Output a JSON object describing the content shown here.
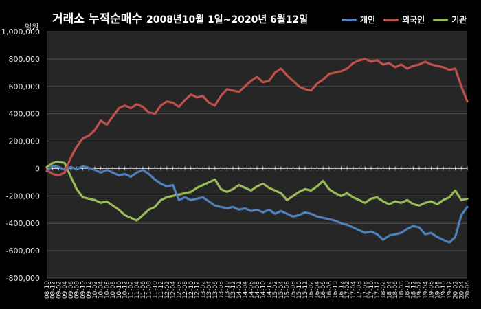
{
  "title": {
    "main": "거래소 누적순매수",
    "sub": "2008년10월 1일~2020년 6월12일"
  },
  "unit_label": "억원",
  "colors": {
    "background": "#000000",
    "plot_background": "#262626",
    "grid": "#505050",
    "axis_text": "#e6e6e6"
  },
  "legend": [
    {
      "name": "개인",
      "color": "#4f81bd"
    },
    {
      "name": "외국인",
      "color": "#c0504d"
    },
    {
      "name": "기관",
      "color": "#9bbb59"
    }
  ],
  "chart_data": {
    "type": "line",
    "title": "거래소 누적순매수 2008년10월 1일~2020년 6월12일",
    "ylabel": "억원",
    "ylim": [
      -800000,
      1000000
    ],
    "yticks": [
      "1,000,000",
      "800,000",
      "600,000",
      "400,000",
      "200,000",
      "0",
      "-200,000",
      "-400,000",
      "-600,000",
      "-800,000"
    ],
    "grid": true,
    "legend_position": "top-right",
    "x_range": [
      "08-10",
      "20-06"
    ],
    "x_ticks": [
      "08-10",
      "08-12",
      "09-02",
      "09-04",
      "09-06",
      "09-08",
      "09-10",
      "09-12",
      "10-02",
      "10-04",
      "10-06",
      "10-08",
      "10-10",
      "10-12",
      "11-02",
      "11-04",
      "11-06",
      "11-08",
      "11-10",
      "11-12",
      "12-02",
      "12-04",
      "12-06",
      "12-08",
      "12-10",
      "12-12",
      "13-02",
      "13-04",
      "13-06",
      "13-08",
      "13-10",
      "13-12",
      "14-02",
      "14-04",
      "14-06",
      "14-08",
      "14-10",
      "14-12",
      "15-02",
      "15-04",
      "15-06",
      "15-08",
      "15-10",
      "15-12",
      "16-02",
      "16-04",
      "16-06",
      "16-08",
      "16-10",
      "16-12",
      "17-02",
      "17-04",
      "17-06",
      "17-08",
      "17-10",
      "17-12",
      "18-02",
      "18-04",
      "18-06",
      "18-08",
      "18-10",
      "18-12",
      "19-02",
      "19-04",
      "19-06",
      "19-08",
      "19-10",
      "19-12",
      "20-02",
      "20-04",
      "20-06"
    ],
    "series": [
      {
        "name": "개인",
        "color": "#4f81bd",
        "points": [
          [
            "08-10",
            -20000
          ],
          [
            "08-12",
            20000
          ],
          [
            "09-02",
            10000
          ],
          [
            "09-04",
            -10000
          ],
          [
            "09-06",
            10000
          ],
          [
            "09-08",
            -5000
          ],
          [
            "09-10",
            15000
          ],
          [
            "09-12",
            5000
          ],
          [
            "10-02",
            -10000
          ],
          [
            "10-04",
            -30000
          ],
          [
            "10-06",
            -10000
          ],
          [
            "10-08",
            -30000
          ],
          [
            "10-10",
            -50000
          ],
          [
            "10-12",
            -40000
          ],
          [
            "11-02",
            -60000
          ],
          [
            "11-04",
            -30000
          ],
          [
            "11-06",
            -10000
          ],
          [
            "11-08",
            -40000
          ],
          [
            "11-10",
            -80000
          ],
          [
            "11-12",
            -110000
          ],
          [
            "12-02",
            -130000
          ],
          [
            "12-04",
            -120000
          ],
          [
            "12-06",
            -230000
          ],
          [
            "12-08",
            -210000
          ],
          [
            "12-10",
            -230000
          ],
          [
            "12-12",
            -220000
          ],
          [
            "13-02",
            -210000
          ],
          [
            "13-04",
            -240000
          ],
          [
            "13-06",
            -270000
          ],
          [
            "13-08",
            -280000
          ],
          [
            "13-10",
            -290000
          ],
          [
            "13-12",
            -280000
          ],
          [
            "14-02",
            -300000
          ],
          [
            "14-04",
            -290000
          ],
          [
            "14-06",
            -310000
          ],
          [
            "14-08",
            -300000
          ],
          [
            "14-10",
            -320000
          ],
          [
            "14-12",
            -300000
          ],
          [
            "15-02",
            -330000
          ],
          [
            "15-04",
            -310000
          ],
          [
            "15-06",
            -330000
          ],
          [
            "15-08",
            -350000
          ],
          [
            "15-10",
            -340000
          ],
          [
            "15-12",
            -320000
          ],
          [
            "16-02",
            -330000
          ],
          [
            "16-04",
            -350000
          ],
          [
            "16-06",
            -360000
          ],
          [
            "16-08",
            -370000
          ],
          [
            "16-10",
            -380000
          ],
          [
            "16-12",
            -400000
          ],
          [
            "17-02",
            -410000
          ],
          [
            "17-04",
            -430000
          ],
          [
            "17-06",
            -450000
          ],
          [
            "17-08",
            -470000
          ],
          [
            "17-10",
            -460000
          ],
          [
            "17-12",
            -480000
          ],
          [
            "18-02",
            -520000
          ],
          [
            "18-04",
            -490000
          ],
          [
            "18-06",
            -480000
          ],
          [
            "18-08",
            -470000
          ],
          [
            "18-10",
            -440000
          ],
          [
            "18-12",
            -420000
          ],
          [
            "19-02",
            -430000
          ],
          [
            "19-04",
            -480000
          ],
          [
            "19-06",
            -470000
          ],
          [
            "19-08",
            -500000
          ],
          [
            "19-10",
            -520000
          ],
          [
            "19-12",
            -540000
          ],
          [
            "20-02",
            -500000
          ],
          [
            "20-04",
            -340000
          ],
          [
            "20-06",
            -280000
          ]
        ]
      },
      {
        "name": "외국인",
        "color": "#c0504d",
        "points": [
          [
            "08-10",
            -10000
          ],
          [
            "08-12",
            -40000
          ],
          [
            "09-02",
            -50000
          ],
          [
            "09-04",
            -30000
          ],
          [
            "09-06",
            80000
          ],
          [
            "09-08",
            160000
          ],
          [
            "09-10",
            220000
          ],
          [
            "09-12",
            240000
          ],
          [
            "10-02",
            280000
          ],
          [
            "10-04",
            350000
          ],
          [
            "10-06",
            320000
          ],
          [
            "10-08",
            380000
          ],
          [
            "10-10",
            440000
          ],
          [
            "10-12",
            460000
          ],
          [
            "11-02",
            440000
          ],
          [
            "11-04",
            470000
          ],
          [
            "11-06",
            450000
          ],
          [
            "11-08",
            410000
          ],
          [
            "11-10",
            400000
          ],
          [
            "11-12",
            460000
          ],
          [
            "12-02",
            490000
          ],
          [
            "12-04",
            480000
          ],
          [
            "12-06",
            450000
          ],
          [
            "12-08",
            500000
          ],
          [
            "12-10",
            540000
          ],
          [
            "12-12",
            520000
          ],
          [
            "13-02",
            530000
          ],
          [
            "13-04",
            480000
          ],
          [
            "13-06",
            460000
          ],
          [
            "13-08",
            530000
          ],
          [
            "13-10",
            580000
          ],
          [
            "13-12",
            570000
          ],
          [
            "14-02",
            560000
          ],
          [
            "14-04",
            600000
          ],
          [
            "14-06",
            640000
          ],
          [
            "14-08",
            670000
          ],
          [
            "14-10",
            630000
          ],
          [
            "14-12",
            640000
          ],
          [
            "15-02",
            700000
          ],
          [
            "15-04",
            730000
          ],
          [
            "15-06",
            680000
          ],
          [
            "15-08",
            640000
          ],
          [
            "15-10",
            600000
          ],
          [
            "15-12",
            580000
          ],
          [
            "16-02",
            570000
          ],
          [
            "16-04",
            620000
          ],
          [
            "16-06",
            650000
          ],
          [
            "16-08",
            690000
          ],
          [
            "16-10",
            700000
          ],
          [
            "16-12",
            710000
          ],
          [
            "17-02",
            730000
          ],
          [
            "17-04",
            770000
          ],
          [
            "17-06",
            790000
          ],
          [
            "17-08",
            800000
          ],
          [
            "17-10",
            780000
          ],
          [
            "17-12",
            790000
          ],
          [
            "18-02",
            760000
          ],
          [
            "18-04",
            770000
          ],
          [
            "18-06",
            740000
          ],
          [
            "18-08",
            760000
          ],
          [
            "18-10",
            730000
          ],
          [
            "18-12",
            750000
          ],
          [
            "19-02",
            760000
          ],
          [
            "19-04",
            780000
          ],
          [
            "19-06",
            760000
          ],
          [
            "19-08",
            750000
          ],
          [
            "19-10",
            740000
          ],
          [
            "19-12",
            720000
          ],
          [
            "20-02",
            730000
          ],
          [
            "20-04",
            600000
          ],
          [
            "20-06",
            490000
          ]
        ]
      },
      {
        "name": "기관",
        "color": "#9bbb59",
        "points": [
          [
            "08-10",
            10000
          ],
          [
            "08-12",
            40000
          ],
          [
            "09-02",
            50000
          ],
          [
            "09-04",
            40000
          ],
          [
            "09-06",
            -60000
          ],
          [
            "09-08",
            -150000
          ],
          [
            "09-10",
            -210000
          ],
          [
            "09-12",
            -220000
          ],
          [
            "10-02",
            -230000
          ],
          [
            "10-04",
            -250000
          ],
          [
            "10-06",
            -240000
          ],
          [
            "10-08",
            -270000
          ],
          [
            "10-10",
            -300000
          ],
          [
            "10-12",
            -340000
          ],
          [
            "11-02",
            -360000
          ],
          [
            "11-04",
            -380000
          ],
          [
            "11-06",
            -340000
          ],
          [
            "11-08",
            -300000
          ],
          [
            "11-10",
            -280000
          ],
          [
            "11-12",
            -230000
          ],
          [
            "12-02",
            -210000
          ],
          [
            "12-04",
            -200000
          ],
          [
            "12-06",
            -190000
          ],
          [
            "12-08",
            -180000
          ],
          [
            "12-10",
            -170000
          ],
          [
            "12-12",
            -140000
          ],
          [
            "13-02",
            -120000
          ],
          [
            "13-04",
            -100000
          ],
          [
            "13-06",
            -80000
          ],
          [
            "13-08",
            -150000
          ],
          [
            "13-10",
            -170000
          ],
          [
            "13-12",
            -150000
          ],
          [
            "14-02",
            -120000
          ],
          [
            "14-04",
            -140000
          ],
          [
            "14-06",
            -160000
          ],
          [
            "14-08",
            -130000
          ],
          [
            "14-10",
            -110000
          ],
          [
            "14-12",
            -140000
          ],
          [
            "15-02",
            -160000
          ],
          [
            "15-04",
            -180000
          ],
          [
            "15-06",
            -230000
          ],
          [
            "15-08",
            -200000
          ],
          [
            "15-10",
            -170000
          ],
          [
            "15-12",
            -150000
          ],
          [
            "16-02",
            -160000
          ],
          [
            "16-04",
            -130000
          ],
          [
            "16-06",
            -90000
          ],
          [
            "16-08",
            -150000
          ],
          [
            "16-10",
            -180000
          ],
          [
            "16-12",
            -200000
          ],
          [
            "17-02",
            -180000
          ],
          [
            "17-04",
            -210000
          ],
          [
            "17-06",
            -230000
          ],
          [
            "17-08",
            -250000
          ],
          [
            "17-10",
            -220000
          ],
          [
            "17-12",
            -210000
          ],
          [
            "18-02",
            -240000
          ],
          [
            "18-04",
            -260000
          ],
          [
            "18-06",
            -240000
          ],
          [
            "18-08",
            -250000
          ],
          [
            "18-10",
            -230000
          ],
          [
            "18-12",
            -260000
          ],
          [
            "19-02",
            -270000
          ],
          [
            "19-04",
            -250000
          ],
          [
            "19-06",
            -240000
          ],
          [
            "19-08",
            -260000
          ],
          [
            "19-10",
            -230000
          ],
          [
            "19-12",
            -210000
          ],
          [
            "20-02",
            -160000
          ],
          [
            "20-04",
            -230000
          ],
          [
            "20-06",
            -220000
          ]
        ]
      }
    ]
  }
}
